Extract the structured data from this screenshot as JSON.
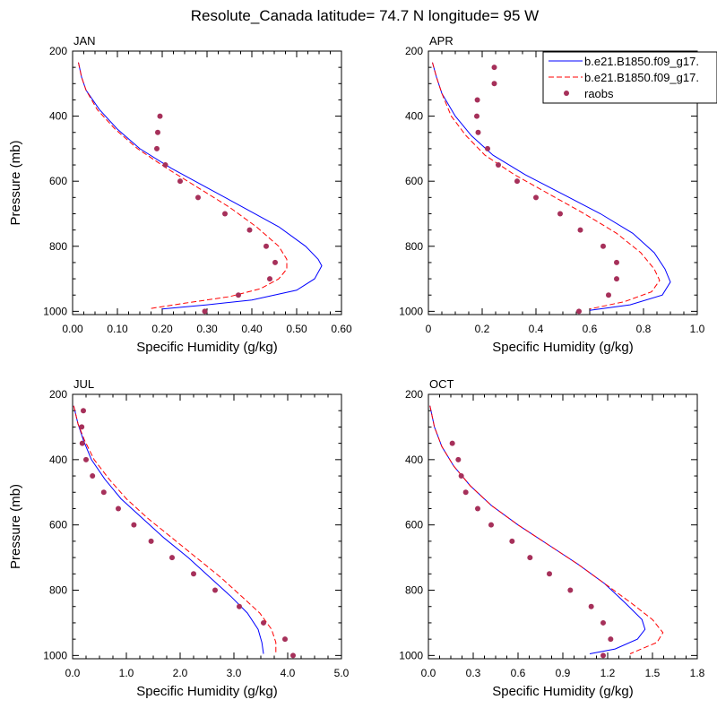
{
  "title": "Resolute_Canada  latitude= 74.7 N longitude= 95 W",
  "colors": {
    "model1": "#0000ff",
    "model2": "#ff0000",
    "obs": "#a6305a"
  },
  "legend": {
    "placement": "top-right",
    "entries": [
      {
        "label": "b.e21.B1850.f09_g17.",
        "style": "solid",
        "color": "#0000ff"
      },
      {
        "label": "b.e21.B1850.f09_g17.",
        "style": "dashed",
        "color": "#ff0000"
      },
      {
        "label": "raobs",
        "style": "marker",
        "color": "#a6305a"
      }
    ]
  },
  "chart_data": [
    {
      "type": "line",
      "panel": "JAN",
      "title": "JAN",
      "xlabel": "Specific Humidity (g/kg)",
      "ylabel": "Pressure (mb)",
      "xlim": [
        0,
        0.6
      ],
      "xticks": [
        "0.00",
        "0.10",
        "0.20",
        "0.30",
        "0.40",
        "0.50",
        "0.60"
      ],
      "xtick_values": [
        0,
        0.1,
        0.2,
        0.3,
        0.4,
        0.5,
        0.6
      ],
      "ylim": [
        1010,
        200
      ],
      "yticks": [
        200,
        400,
        600,
        800,
        1000
      ],
      "series": [
        {
          "style": "solid",
          "color": "#0000ff",
          "points": [
            [
              0.013,
              235
            ],
            [
              0.02,
              280
            ],
            [
              0.03,
              320
            ],
            [
              0.06,
              380
            ],
            [
              0.1,
              440
            ],
            [
              0.15,
              500
            ],
            [
              0.22,
              560
            ],
            [
              0.3,
              620
            ],
            [
              0.38,
              680
            ],
            [
              0.46,
              740
            ],
            [
              0.52,
              800
            ],
            [
              0.548,
              840
            ],
            [
              0.556,
              860
            ],
            [
              0.54,
              900
            ],
            [
              0.5,
              935
            ],
            [
              0.4,
              965
            ],
            [
              0.3,
              980
            ],
            [
              0.2,
              993
            ]
          ]
        },
        {
          "style": "dashed",
          "color": "#ff0000",
          "points": [
            [
              0.013,
              235
            ],
            [
              0.02,
              280
            ],
            [
              0.03,
              320
            ],
            [
              0.055,
              380
            ],
            [
              0.095,
              440
            ],
            [
              0.145,
              500
            ],
            [
              0.21,
              560
            ],
            [
              0.28,
              620
            ],
            [
              0.35,
              680
            ],
            [
              0.41,
              740
            ],
            [
              0.46,
              800
            ],
            [
              0.478,
              840
            ],
            [
              0.478,
              870
            ],
            [
              0.46,
              900
            ],
            [
              0.42,
              930
            ],
            [
              0.35,
              955
            ],
            [
              0.25,
              975
            ],
            [
              0.17,
              992
            ]
          ]
        }
      ],
      "observations": [
        [
          0.195,
          400
        ],
        [
          0.19,
          450
        ],
        [
          0.188,
          500
        ],
        [
          0.207,
          550
        ],
        [
          0.24,
          600
        ],
        [
          0.28,
          650
        ],
        [
          0.34,
          700
        ],
        [
          0.395,
          750
        ],
        [
          0.432,
          800
        ],
        [
          0.452,
          850
        ],
        [
          0.44,
          900
        ],
        [
          0.37,
          950
        ],
        [
          0.295,
          1000
        ]
      ]
    },
    {
      "type": "line",
      "panel": "APR",
      "title": "APR",
      "xlabel": "Specific Humidity (g/kg)",
      "ylabel": "",
      "xlim": [
        0,
        1.0
      ],
      "xticks": [
        "0",
        "0.2",
        "0.4",
        "0.6",
        "0.8",
        "1.0"
      ],
      "xtick_values": [
        0,
        0.2,
        0.4,
        0.6,
        0.8,
        1.0
      ],
      "ylim": [
        1010,
        200
      ],
      "yticks": [
        200,
        400,
        600,
        800,
        1000
      ],
      "series": [
        {
          "style": "solid",
          "color": "#0000ff",
          "points": [
            [
              0.015,
              235
            ],
            [
              0.03,
              280
            ],
            [
              0.05,
              330
            ],
            [
              0.1,
              400
            ],
            [
              0.16,
              460
            ],
            [
              0.24,
              520
            ],
            [
              0.36,
              580
            ],
            [
              0.5,
              640
            ],
            [
              0.64,
              700
            ],
            [
              0.76,
              760
            ],
            [
              0.84,
              820
            ],
            [
              0.88,
              870
            ],
            [
              0.9,
              910
            ],
            [
              0.87,
              950
            ],
            [
              0.75,
              980
            ],
            [
              0.6,
              997
            ]
          ]
        },
        {
          "style": "dashed",
          "color": "#ff0000",
          "points": [
            [
              0.015,
              235
            ],
            [
              0.03,
              280
            ],
            [
              0.05,
              330
            ],
            [
              0.085,
              400
            ],
            [
              0.14,
              460
            ],
            [
              0.21,
              520
            ],
            [
              0.32,
              580
            ],
            [
              0.45,
              640
            ],
            [
              0.58,
              700
            ],
            [
              0.7,
              760
            ],
            [
              0.79,
              820
            ],
            [
              0.84,
              870
            ],
            [
              0.86,
              905
            ],
            [
              0.83,
              940
            ],
            [
              0.73,
              970
            ],
            [
              0.6,
              993
            ]
          ]
        }
      ],
      "observations": [
        [
          0.245,
          250
        ],
        [
          0.245,
          300
        ],
        [
          0.182,
          350
        ],
        [
          0.18,
          400
        ],
        [
          0.185,
          450
        ],
        [
          0.22,
          500
        ],
        [
          0.26,
          550
        ],
        [
          0.33,
          600
        ],
        [
          0.4,
          650
        ],
        [
          0.49,
          700
        ],
        [
          0.565,
          750
        ],
        [
          0.65,
          800
        ],
        [
          0.7,
          850
        ],
        [
          0.7,
          900
        ],
        [
          0.67,
          950
        ],
        [
          0.56,
          1000
        ]
      ]
    },
    {
      "type": "line",
      "panel": "JUL",
      "title": "JUL",
      "xlabel": "Specific Humidity (g/kg)",
      "ylabel": "Pressure (mb)",
      "xlim": [
        0,
        5.0
      ],
      "xticks": [
        "0.0",
        "1.0",
        "2.0",
        "3.0",
        "4.0",
        "5.0"
      ],
      "xtick_values": [
        0,
        1,
        2,
        3,
        4,
        5
      ],
      "ylim": [
        1010,
        200
      ],
      "yticks": [
        200,
        400,
        600,
        800,
        1000
      ],
      "series": [
        {
          "style": "solid",
          "color": "#0000ff",
          "points": [
            [
              0.02,
              235
            ],
            [
              0.1,
              290
            ],
            [
              0.2,
              340
            ],
            [
              0.35,
              400
            ],
            [
              0.6,
              460
            ],
            [
              0.9,
              520
            ],
            [
              1.3,
              580
            ],
            [
              1.7,
              640
            ],
            [
              2.15,
              700
            ],
            [
              2.55,
              760
            ],
            [
              2.95,
              820
            ],
            [
              3.25,
              870
            ],
            [
              3.45,
              920
            ],
            [
              3.52,
              960
            ],
            [
              3.55,
              995
            ]
          ]
        },
        {
          "style": "dashed",
          "color": "#ff0000",
          "points": [
            [
              0.02,
              235
            ],
            [
              0.1,
              290
            ],
            [
              0.22,
              340
            ],
            [
              0.4,
              400
            ],
            [
              0.68,
              460
            ],
            [
              1.0,
              520
            ],
            [
              1.4,
              580
            ],
            [
              1.85,
              640
            ],
            [
              2.3,
              700
            ],
            [
              2.75,
              760
            ],
            [
              3.15,
              820
            ],
            [
              3.48,
              870
            ],
            [
              3.7,
              920
            ],
            [
              3.78,
              960
            ],
            [
              3.78,
              995
            ]
          ]
        }
      ],
      "observations": [
        [
          0.2,
          250
        ],
        [
          0.17,
          300
        ],
        [
          0.18,
          350
        ],
        [
          0.25,
          400
        ],
        [
          0.37,
          450
        ],
        [
          0.58,
          500
        ],
        [
          0.85,
          550
        ],
        [
          1.14,
          600
        ],
        [
          1.46,
          650
        ],
        [
          1.85,
          700
        ],
        [
          2.25,
          750
        ],
        [
          2.65,
          800
        ],
        [
          3.1,
          850
        ],
        [
          3.55,
          900
        ],
        [
          3.95,
          950
        ],
        [
          4.1,
          1000
        ]
      ]
    },
    {
      "type": "line",
      "panel": "OCT",
      "title": "OCT",
      "xlabel": "Specific Humidity (g/kg)",
      "ylabel": "",
      "xlim": [
        0,
        1.8
      ],
      "xticks": [
        "0.0",
        "0.3",
        "0.6",
        "0.9",
        "1.2",
        "1.5",
        "1.8"
      ],
      "xtick_values": [
        0,
        0.3,
        0.6,
        0.9,
        1.2,
        1.5,
        1.8
      ],
      "ylim": [
        1010,
        200
      ],
      "yticks": [
        200,
        400,
        600,
        800,
        1000
      ],
      "series": [
        {
          "style": "solid",
          "color": "#0000ff",
          "points": [
            [
              0.01,
              235
            ],
            [
              0.04,
              300
            ],
            [
              0.09,
              360
            ],
            [
              0.17,
              420
            ],
            [
              0.28,
              480
            ],
            [
              0.42,
              540
            ],
            [
              0.6,
              600
            ],
            [
              0.8,
              660
            ],
            [
              1.0,
              720
            ],
            [
              1.18,
              780
            ],
            [
              1.32,
              840
            ],
            [
              1.43,
              890
            ],
            [
              1.45,
              920
            ],
            [
              1.4,
              950
            ],
            [
              1.25,
              980
            ],
            [
              1.08,
              995
            ]
          ]
        },
        {
          "style": "dashed",
          "color": "#ff0000",
          "points": [
            [
              0.01,
              235
            ],
            [
              0.04,
              300
            ],
            [
              0.09,
              360
            ],
            [
              0.17,
              420
            ],
            [
              0.28,
              480
            ],
            [
              0.42,
              540
            ],
            [
              0.6,
              600
            ],
            [
              0.8,
              660
            ],
            [
              1.0,
              720
            ],
            [
              1.18,
              780
            ],
            [
              1.36,
              840
            ],
            [
              1.5,
              890
            ],
            [
              1.57,
              930
            ],
            [
              1.53,
              960
            ],
            [
              1.4,
              985
            ],
            [
              1.35,
              995
            ]
          ]
        }
      ],
      "observations": [
        [
          0.16,
          350
        ],
        [
          0.2,
          400
        ],
        [
          0.22,
          450
        ],
        [
          0.25,
          500
        ],
        [
          0.33,
          550
        ],
        [
          0.42,
          600
        ],
        [
          0.56,
          650
        ],
        [
          0.68,
          700
        ],
        [
          0.81,
          750
        ],
        [
          0.95,
          800
        ],
        [
          1.09,
          850
        ],
        [
          1.17,
          900
        ],
        [
          1.22,
          950
        ],
        [
          1.17,
          1000
        ]
      ]
    }
  ]
}
